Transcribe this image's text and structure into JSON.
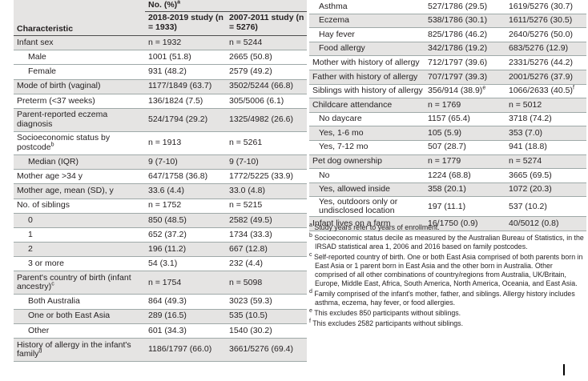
{
  "left": {
    "header": {
      "top": "No. (%)",
      "top_sup": "a",
      "characteristic": "Characteristic",
      "col1": "2018-2019 study (n = 1933)",
      "col2": "2007-2011 study (n = 5276)"
    },
    "rows": [
      {
        "label": "Infant sex",
        "c1": "n = 1932",
        "c2": "n = 5244",
        "shade": true
      },
      {
        "label": "Male",
        "c1": "1001 (51.8)",
        "c2": "2665 (50.8)",
        "indent": true
      },
      {
        "label": "Female",
        "c1": "931 (48.2)",
        "c2": "2579 (49.2)",
        "indent": true
      },
      {
        "label": "Mode of birth (vaginal)",
        "c1": "1177/1849 (63.7)",
        "c2": "3502/5244 (66.8)",
        "shade": true
      },
      {
        "label": "Preterm (<37 weeks)",
        "c1": "136/1824 (7.5)",
        "c2": "305/5006 (6.1)"
      },
      {
        "label": "Parent-reported eczema diagnosis",
        "c1": "524/1794 (29.2)",
        "c2": "1325/4982 (26.6)",
        "shade": true,
        "tall": true
      },
      {
        "label": "Socioeconomic status by postcode",
        "sup": "b",
        "c1": "n = 1913",
        "c2": "n = 5261",
        "tall": true
      },
      {
        "label": "Median (IQR)",
        "c1": "9 (7-10)",
        "c2": "9 (7-10)",
        "indent": true,
        "shade": true
      },
      {
        "label": "Mother age >34 y",
        "c1": "647/1758 (36.8)",
        "c2": "1772/5225 (33.9)"
      },
      {
        "label": "Mother age, mean (SD), y",
        "c1": "33.6 (4.4)",
        "c2": "33.0 (4.8)",
        "shade": true
      },
      {
        "label": "No. of siblings",
        "c1": "n = 1752",
        "c2": "n = 5215"
      },
      {
        "label": "0",
        "c1": "850 (48.5)",
        "c2": "2582 (49.5)",
        "indent": true,
        "shade": true
      },
      {
        "label": "1",
        "c1": "652 (37.2)",
        "c2": "1734 (33.3)",
        "indent": true
      },
      {
        "label": "2",
        "c1": "196 (11.2)",
        "c2": "667 (12.8)",
        "indent": true,
        "shade": true
      },
      {
        "label": "3 or more",
        "c1": "54 (3.1)",
        "c2": "232 (4.4)",
        "indent": true
      },
      {
        "label": "Parent's country of birth (infant ancestry)",
        "sup": "c",
        "c1": "n = 1754",
        "c2": "n = 5098",
        "shade": true,
        "tall": true
      },
      {
        "label": "Both Australia",
        "c1": "864 (49.3)",
        "c2": "3023 (59.3)",
        "indent": true
      },
      {
        "label": "One or both East Asia",
        "c1": "289 (16.5)",
        "c2": "535 (10.5)",
        "indent": true,
        "shade": true
      },
      {
        "label": "Other",
        "c1": "601 (34.3)",
        "c2": "1540 (30.2)",
        "indent": true
      },
      {
        "label": "History of allergy in the infant's family",
        "sup": "d",
        "c1": "1186/1797 (66.0)",
        "c2": "3661/5276 (69.4)",
        "shade": true,
        "tall": true
      }
    ]
  },
  "right": {
    "rows": [
      {
        "label": "Asthma",
        "c1": "527/1786 (29.5)",
        "c2": "1619/5276 (30.7)",
        "indent": true
      },
      {
        "label": "Eczema",
        "c1": "538/1786 (30.1)",
        "c2": "1611/5276 (30.5)",
        "indent": true,
        "shade": true
      },
      {
        "label": "Hay fever",
        "c1": "825/1786 (46.2)",
        "c2": "2640/5276 (50.0)",
        "indent": true
      },
      {
        "label": "Food allergy",
        "c1": "342/1786 (19.2)",
        "c2": "683/5276 (12.9)",
        "indent": true,
        "shade": true
      },
      {
        "label": "Mother with history of allergy",
        "c1": "712/1797 (39.6)",
        "c2": "2331/5276 (44.2)"
      },
      {
        "label": "Father with history of allergy",
        "c1": "707/1797 (39.3)",
        "c2": "2001/5276 (37.9)",
        "shade": true
      },
      {
        "label": "Siblings with history of allergy",
        "c1": "356/914 (38.9)",
        "c1sup": "e",
        "c2": "1066/2633 (40.5)",
        "c2sup": "f"
      },
      {
        "label": "Childcare attendance",
        "c1": "n = 1769",
        "c2": "n = 5012",
        "shade": true
      },
      {
        "label": "No daycare",
        "c1": "1157 (65.4)",
        "c2": "3718 (74.2)",
        "indent": true
      },
      {
        "label": "Yes, 1-6 mo",
        "c1": "105 (5.9)",
        "c2": "353 (7.0)",
        "indent": true,
        "shade": true
      },
      {
        "label": "Yes, 7-12 mo",
        "c1": "507 (28.7)",
        "c2": "941 (18.8)",
        "indent": true
      },
      {
        "label": "Pet dog ownership",
        "c1": "n = 1779",
        "c2": "n = 5274",
        "shade": true
      },
      {
        "label": "No",
        "c1": "1224 (68.8)",
        "c2": "3665 (69.5)",
        "indent": true
      },
      {
        "label": "Yes, allowed inside",
        "c1": "358 (20.1)",
        "c2": "1072 (20.3)",
        "indent": true,
        "shade": true
      },
      {
        "label": "Yes, outdoors only or undisclosed location",
        "c1": "197 (11.1)",
        "c2": "537 (10.2)",
        "indent": true,
        "tall": true
      },
      {
        "label": "Infant lives on a farm",
        "c1": "16/1750 (0.9)",
        "c2": "40/5012 (0.8)",
        "shade": true
      }
    ]
  },
  "footnotes": [
    {
      "mark": "a",
      "text": "Study years refer to years of enrollment."
    },
    {
      "mark": "b",
      "text": "Socioeconomic status decile as measured by the Australian Bureau of Statistics, in the IRSAD statistical area 1, 2006 and 2016 based on family postcodes."
    },
    {
      "mark": "c",
      "text": "Self-reported country of birth. One or both East Asia comprised of both parents born in East Asia or 1 parent born in East Asia and the other born in Australia. Other comprised of all other combinations of country/regions from Australia, UK/Britain, Europe, Middle East, Africa, South America, North America, Oceania, and East Asia."
    },
    {
      "mark": "d",
      "text": "Family comprised of the infant's mother, father, and siblings. Allergy history includes asthma, eczema, hay fever, or food allergies."
    },
    {
      "mark": "e",
      "text": "This excludes 850 participants without siblings."
    },
    {
      "mark": "f",
      "text": "This excludes 2582 participants without siblings."
    }
  ]
}
